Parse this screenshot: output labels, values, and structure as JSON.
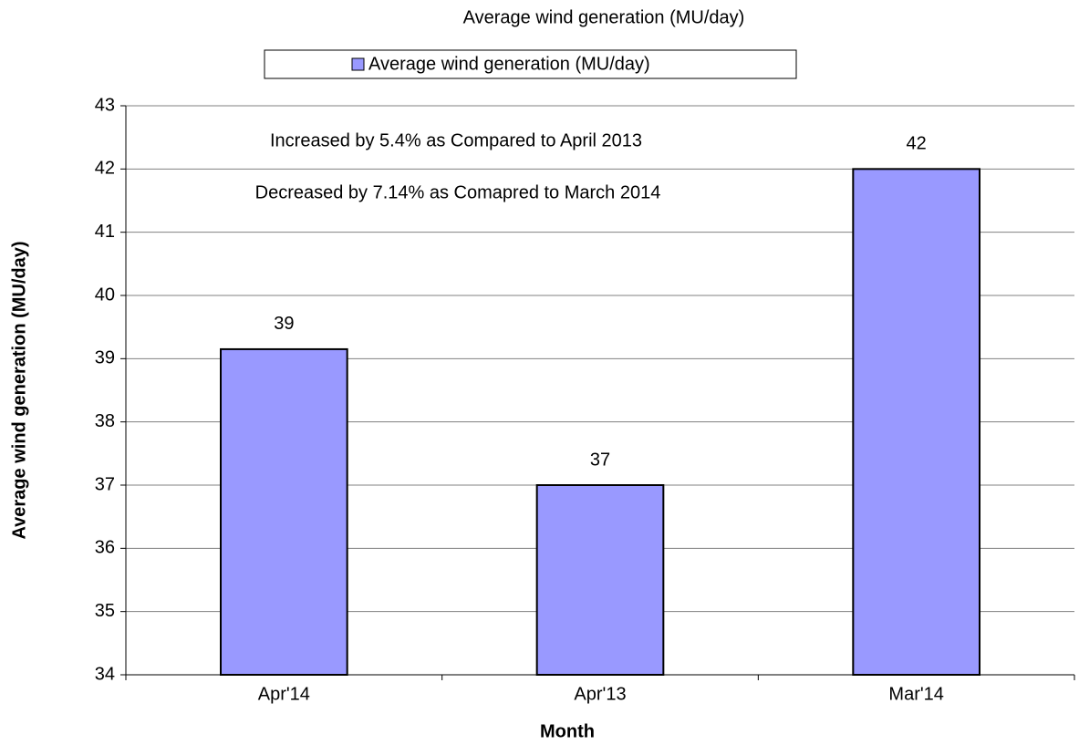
{
  "chart_data": {
    "type": "bar",
    "title": "Average wind generation (MU/day)",
    "x_label": "Month",
    "y_label": "Average wind generation (MU/day)",
    "categories": [
      "Apr'14",
      "Apr'13",
      "Mar'14"
    ],
    "series": [
      {
        "name": "Average wind generation (MU/day)",
        "color": "#9999ff",
        "values": [
          39.15,
          37,
          42
        ],
        "value_labels": [
          "39",
          "37",
          "42"
        ]
      }
    ],
    "annotations": [
      "Increased by 5.4% as Compared to April 2013",
      "Decreased by 7.14% as Comapred to  March 2014"
    ],
    "ylim": [
      34,
      43
    ],
    "yticks": [
      34,
      35,
      36,
      37,
      38,
      39,
      40,
      41,
      42,
      43
    ],
    "grid": true,
    "legend": "top"
  }
}
